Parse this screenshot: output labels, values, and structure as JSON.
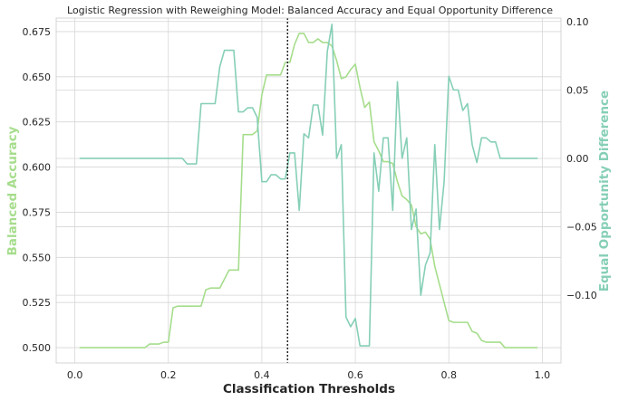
{
  "chart_data": {
    "type": "line",
    "title": "Logistic Regression with Reweighing Model: Balanced Accuracy and Equal Opportunity Difference",
    "xlabel": "Classification Thresholds",
    "ylabel_left": "Balanced Accuracy",
    "ylabel_right": "Equal Opportunity Difference",
    "xlim": [
      -0.04,
      1.04
    ],
    "ylim_left": [
      0.4915,
      0.6825
    ],
    "ylim_right": [
      -0.1495,
      0.1025
    ],
    "x_ticks": [
      0.0,
      0.2,
      0.4,
      0.6,
      0.8,
      1.0
    ],
    "x_tick_labels": [
      "0.0",
      "0.2",
      "0.4",
      "0.6",
      "0.8",
      "1.0"
    ],
    "y_left_ticks": [
      0.5,
      0.525,
      0.55,
      0.575,
      0.6,
      0.625,
      0.65,
      0.675
    ],
    "y_left_tick_labels": [
      "0.500",
      "0.525",
      "0.550",
      "0.575",
      "0.600",
      "0.625",
      "0.650",
      "0.675"
    ],
    "y_right_ticks": [
      -0.1,
      -0.05,
      0.0,
      0.05,
      0.1
    ],
    "y_right_tick_labels": [
      "−0.10",
      "−0.05",
      "0.00",
      "0.05",
      "0.10"
    ],
    "grid": true,
    "best_threshold": 0.455,
    "colors": {
      "balanced_accuracy": "#a6dd8c",
      "equal_opportunity": "#86cfb6",
      "threshold_line": "#262626",
      "grid": "#d6d6d6"
    },
    "x": [
      0.01,
      0.02,
      0.03,
      0.04,
      0.05,
      0.06,
      0.07,
      0.08,
      0.09,
      0.1,
      0.11,
      0.12,
      0.13,
      0.14,
      0.15,
      0.16,
      0.17,
      0.18,
      0.19,
      0.2,
      0.21,
      0.22,
      0.23,
      0.24,
      0.25,
      0.26,
      0.27,
      0.28,
      0.29,
      0.3,
      0.31,
      0.32,
      0.33,
      0.34,
      0.35,
      0.36,
      0.37,
      0.38,
      0.39,
      0.4,
      0.41,
      0.42,
      0.43,
      0.44,
      0.45,
      0.46,
      0.47,
      0.48,
      0.49,
      0.5,
      0.51,
      0.52,
      0.53,
      0.54,
      0.55,
      0.56,
      0.57,
      0.58,
      0.59,
      0.6,
      0.61,
      0.62,
      0.63,
      0.64,
      0.65,
      0.66,
      0.67,
      0.68,
      0.69,
      0.7,
      0.71,
      0.72,
      0.73,
      0.74,
      0.75,
      0.76,
      0.77,
      0.78,
      0.79,
      0.8,
      0.81,
      0.82,
      0.83,
      0.84,
      0.85,
      0.86,
      0.87,
      0.88,
      0.89,
      0.9,
      0.91,
      0.92,
      0.93,
      0.94,
      0.95,
      0.96,
      0.97,
      0.98,
      0.99
    ],
    "series": [
      {
        "name": "Balanced Accuracy",
        "axis": "left",
        "values": [
          0.5,
          0.5,
          0.5,
          0.5,
          0.5,
          0.5,
          0.5,
          0.5,
          0.5,
          0.5,
          0.5,
          0.5,
          0.5,
          0.5,
          0.5,
          0.502,
          0.502,
          0.502,
          0.503,
          0.503,
          0.522,
          0.523,
          0.523,
          0.523,
          0.523,
          0.523,
          0.523,
          0.532,
          0.533,
          0.533,
          0.533,
          0.538,
          0.543,
          0.543,
          0.543,
          0.618,
          0.618,
          0.618,
          0.62,
          0.64,
          0.651,
          0.651,
          0.651,
          0.651,
          0.658,
          0.658,
          0.668,
          0.674,
          0.674,
          0.669,
          0.669,
          0.671,
          0.669,
          0.669,
          0.667,
          0.659,
          0.649,
          0.65,
          0.654,
          0.657,
          0.644,
          0.633,
          0.636,
          0.614,
          0.609,
          0.603,
          0.603,
          0.602,
          0.592,
          0.584,
          0.582,
          0.579,
          0.567,
          0.563,
          0.564,
          0.56,
          0.545,
          0.535,
          0.525,
          0.515,
          0.514,
          0.514,
          0.514,
          0.514,
          0.509,
          0.508,
          0.504,
          0.503,
          0.503,
          0.503,
          0.503,
          0.5,
          0.5,
          0.5,
          0.5,
          0.5,
          0.5,
          0.5,
          0.5
        ]
      },
      {
        "name": "Equal Opportunity Difference",
        "axis": "right",
        "values": [
          0.0,
          0.0,
          0.0,
          0.0,
          0.0,
          0.0,
          0.0,
          0.0,
          0.0,
          0.0,
          0.0,
          0.0,
          0.0,
          0.0,
          0.0,
          0.0,
          0.0,
          0.0,
          0.0,
          0.0,
          0.0,
          0.0,
          0.0,
          -0.004,
          -0.004,
          -0.004,
          0.04,
          0.04,
          0.04,
          0.04,
          0.067,
          0.079,
          0.079,
          0.079,
          0.034,
          0.034,
          0.037,
          0.037,
          0.03,
          -0.017,
          -0.017,
          -0.012,
          -0.012,
          -0.015,
          -0.015,
          0.004,
          0.004,
          -0.038,
          0.018,
          0.015,
          0.039,
          0.039,
          0.017,
          0.078,
          0.098,
          0.0,
          0.01,
          -0.116,
          -0.123,
          -0.117,
          -0.137,
          -0.137,
          -0.137,
          0.004,
          -0.024,
          0.015,
          0.015,
          -0.038,
          0.056,
          0.0,
          0.015,
          -0.052,
          -0.037,
          -0.1,
          -0.078,
          -0.069,
          0.01,
          -0.052,
          -0.017,
          0.06,
          0.05,
          0.05,
          0.035,
          0.04,
          0.01,
          -0.003,
          0.015,
          0.015,
          0.012,
          0.012,
          0.0,
          0.0,
          0.0,
          0.0,
          0.0,
          0.0,
          0.0,
          0.0,
          0.0
        ]
      }
    ]
  }
}
